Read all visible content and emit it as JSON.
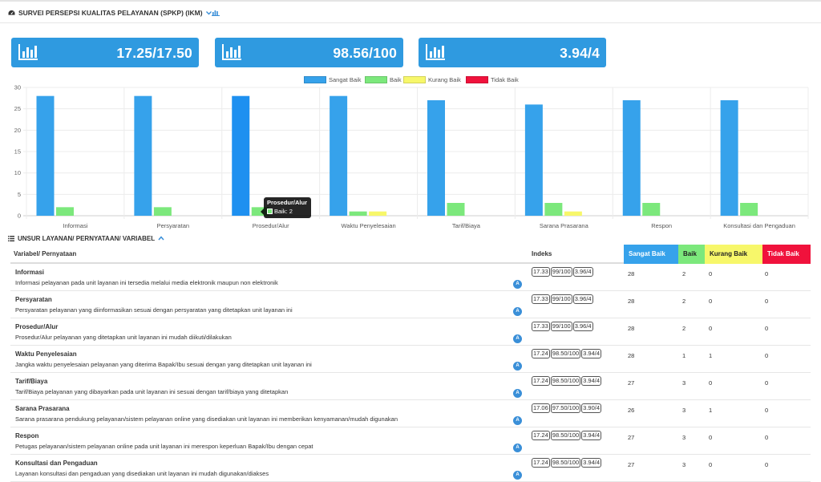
{
  "panel": {
    "title": "SURVEI PERSEPSI KUALITAS PELAYANAN (SPKP) (IKM)"
  },
  "kpis": [
    {
      "value": "17.25/17.50",
      "icon": "bar-chart-icon"
    },
    {
      "value": "98.56/100",
      "icon": "bar-chart-icon"
    },
    {
      "value": "3.94/4",
      "icon": "bar-chart-icon"
    }
  ],
  "chart_data": {
    "type": "bar",
    "categories": [
      "Informasi",
      "Persyaratan",
      "Prosedur/Alur",
      "Waktu Penyelesaian",
      "Tarif/Biaya",
      "Sarana Prasarana",
      "Respon",
      "Konsultasi dan Pengaduan"
    ],
    "series": [
      {
        "name": "Sangat Baik",
        "color": "#36a2eb",
        "values": [
          28,
          28,
          28,
          28,
          27,
          26,
          27,
          27
        ]
      },
      {
        "name": "Baik",
        "color": "#7ce87c",
        "values": [
          2,
          2,
          2,
          1,
          3,
          3,
          3,
          3
        ]
      },
      {
        "name": "Kurang Baik",
        "color": "#f7f76a",
        "values": [
          0,
          0,
          0,
          1,
          0,
          1,
          0,
          0
        ]
      },
      {
        "name": "Tidak Baik",
        "color": "#f0123c",
        "values": [
          0,
          0,
          0,
          0,
          0,
          0,
          0,
          0
        ]
      }
    ],
    "yticks": [
      0,
      5,
      10,
      15,
      20,
      25,
      30
    ],
    "ylim": [
      0,
      30
    ],
    "grid": true,
    "legend": "top-center",
    "tooltip": {
      "title": "Prosedur/Alur",
      "label": "Baik: 2"
    }
  },
  "section": {
    "title": "UNSUR LAYANAN/ PERNYATAAN/ VARIABEL"
  },
  "table": {
    "headers": {
      "variabel": "Variabel/ Pernyataan",
      "indeks": "Indeks",
      "sangat_baik": "Sangat Baik",
      "baik": "Baik",
      "kurang_baik": "Kurang Baik",
      "tidak_baik": "Tidak Baik"
    },
    "header_colors": {
      "sangat_baik": "#36a2eb",
      "baik": "#7ce87c",
      "kurang_baik": "#f7f76a",
      "tidak_baik": "#f0123c"
    },
    "badge_label": "A",
    "rows": [
      {
        "name": "Informasi",
        "desc": "Informasi pelayanan pada unit layanan ini tersedia melalui media elektronik maupun non elektronik",
        "idx": [
          "17.33",
          "99/100",
          "3.96/4"
        ],
        "sb": "28",
        "b": "2",
        "kb": "0",
        "tb": "0"
      },
      {
        "name": "Persyaratan",
        "desc": "Persyaratan pelayanan yang diinformasikan sesuai dengan persyaratan yang ditetapkan unit layanan ini",
        "idx": [
          "17.33",
          "99/100",
          "3.96/4"
        ],
        "sb": "28",
        "b": "2",
        "kb": "0",
        "tb": "0"
      },
      {
        "name": "Prosedur/Alur",
        "desc": "Prosedur/Alur pelayanan yang ditetapkan unit layanan ini mudah diikuti/dilakukan",
        "idx": [
          "17.33",
          "99/100",
          "3.96/4"
        ],
        "sb": "28",
        "b": "2",
        "kb": "0",
        "tb": "0"
      },
      {
        "name": "Waktu Penyelesaian",
        "desc": "Jangka waktu penyelesaian pelayanan yang diterima Bapak/Ibu sesuai dengan yang ditetapkan unit layanan ini",
        "idx": [
          "17.24",
          "98.50/100",
          "3.94/4"
        ],
        "sb": "28",
        "b": "1",
        "kb": "1",
        "tb": "0"
      },
      {
        "name": "Tarif/Biaya",
        "desc": "Tarif/Biaya pelayanan yang dibayarkan pada unit layanan ini sesuai dengan tarif/biaya yang ditetapkan",
        "idx": [
          "17.24",
          "98.50/100",
          "3.94/4"
        ],
        "sb": "27",
        "b": "3",
        "kb": "0",
        "tb": "0"
      },
      {
        "name": "Sarana Prasarana",
        "desc": "Sarana prasarana pendukung pelayanan/sistem pelayanan online yang disediakan unit layanan ini memberikan kenyamanan/mudah digunakan",
        "idx": [
          "17.06",
          "97.50/100",
          "3.90/4"
        ],
        "sb": "26",
        "b": "3",
        "kb": "1",
        "tb": "0"
      },
      {
        "name": "Respon",
        "desc": "Petugas pelayanan/sistem pelayanan online pada unit layanan ini merespon keperluan Bapak/Ibu dengan cepat",
        "idx": [
          "17.24",
          "98.50/100",
          "3.94/4"
        ],
        "sb": "27",
        "b": "3",
        "kb": "0",
        "tb": "0"
      },
      {
        "name": "Konsultasi dan Pengaduan",
        "desc": "Layanan konsultasi dan pengaduan yang disediakan unit layanan ini mudah digunakan/diakses",
        "idx": [
          "17.24",
          "98.50/100",
          "3.94/4"
        ],
        "sb": "27",
        "b": "3",
        "kb": "0",
        "tb": "0"
      }
    ]
  }
}
